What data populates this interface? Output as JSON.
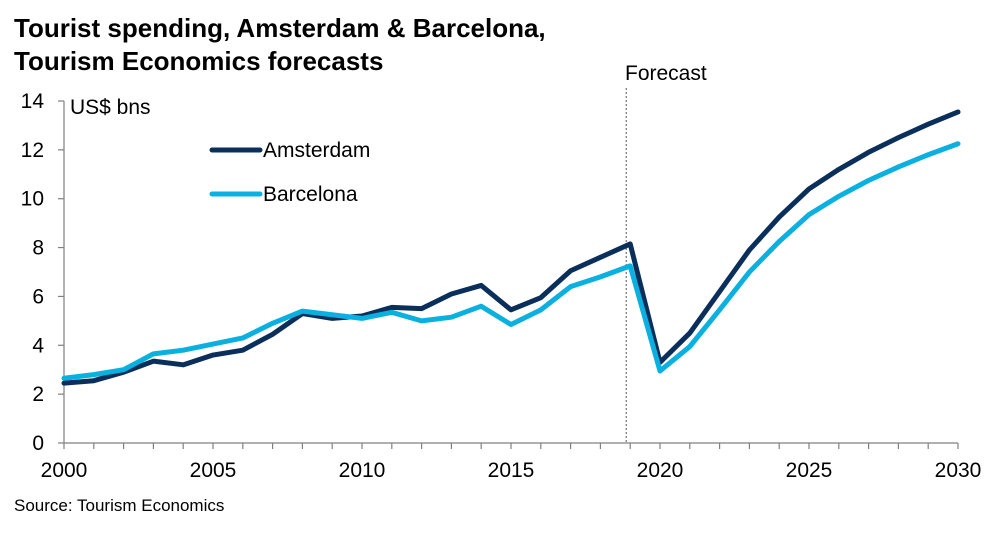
{
  "title_line1": "Tourist spending, Amsterdam & Barcelona,",
  "title_line2": "Tourism Economics forecasts",
  "source": "Source: Tourism Economics",
  "chart_data": {
    "type": "line",
    "title": "Tourist spending, Amsterdam & Barcelona, Tourism Economics forecasts",
    "ylabel": "US$ bns",
    "xlabel": "",
    "xlim": [
      2000,
      2030
    ],
    "ylim": [
      0,
      14
    ],
    "x_ticks": [
      2000,
      2005,
      2010,
      2015,
      2020,
      2025,
      2030
    ],
    "y_ticks": [
      0,
      2,
      4,
      6,
      8,
      10,
      12,
      14
    ],
    "forecast_label": "Forecast",
    "forecast_start": 2019,
    "legend_position": "top-left",
    "x": [
      2000,
      2001,
      2002,
      2003,
      2004,
      2005,
      2006,
      2007,
      2008,
      2009,
      2010,
      2011,
      2012,
      2013,
      2014,
      2015,
      2016,
      2017,
      2018,
      2019,
      2020,
      2021,
      2022,
      2023,
      2024,
      2025,
      2026,
      2027,
      2028,
      2029,
      2030
    ],
    "series": [
      {
        "name": "Amsterdam",
        "color": "#0b2f5b",
        "values": [
          2.45,
          2.55,
          2.9,
          3.35,
          3.2,
          3.6,
          3.8,
          4.45,
          5.3,
          5.1,
          5.2,
          5.55,
          5.5,
          6.1,
          6.45,
          5.45,
          5.95,
          7.05,
          7.6,
          8.15,
          3.3,
          4.5,
          6.2,
          7.9,
          9.25,
          10.4,
          11.2,
          11.9,
          12.5,
          13.05,
          13.55
        ]
      },
      {
        "name": "Barcelona",
        "color": "#0ab0df",
        "values": [
          2.65,
          2.8,
          3.0,
          3.65,
          3.8,
          4.05,
          4.3,
          4.9,
          5.4,
          5.25,
          5.1,
          5.35,
          5.0,
          5.15,
          5.6,
          4.85,
          5.45,
          6.4,
          6.8,
          7.25,
          2.95,
          3.95,
          5.45,
          7.0,
          8.25,
          9.35,
          10.1,
          10.75,
          11.3,
          11.8,
          12.25
        ]
      }
    ]
  }
}
